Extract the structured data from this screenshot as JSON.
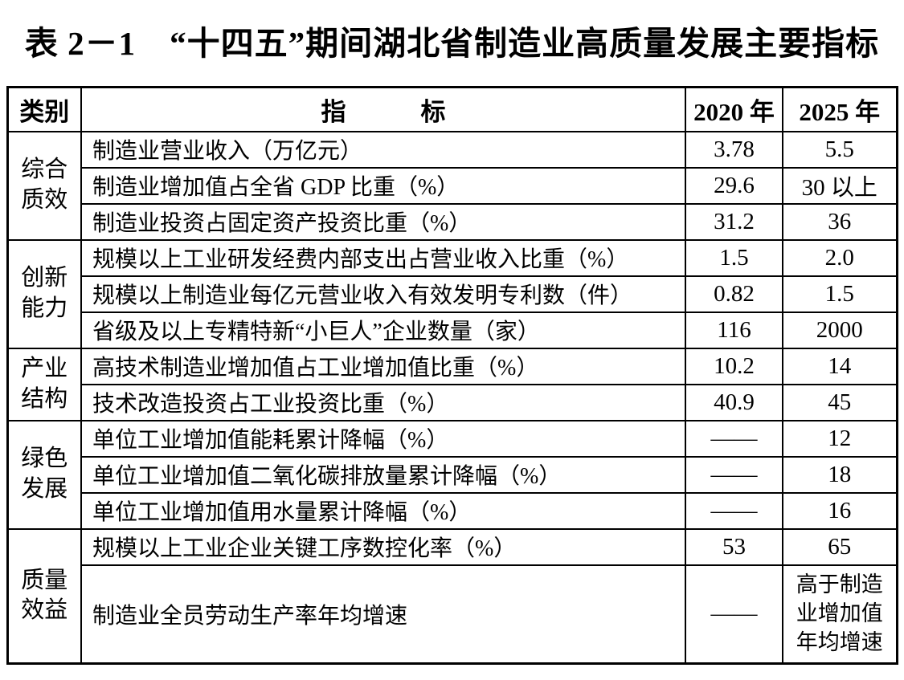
{
  "title": "表 2－1　“十四五”期间湖北省制造业高质量发展主要指标",
  "table": {
    "header": {
      "category": "类别",
      "indicator": "指　　　标",
      "year2020": "2020 年",
      "year2025": "2025 年"
    },
    "groups": [
      {
        "category_lines": [
          "综合",
          "质效"
        ],
        "rows": [
          {
            "indicator": "制造业营业收入（万亿元）",
            "v2020": "3.78",
            "v2025": "5.5"
          },
          {
            "indicator": "制造业增加值占全省 GDP 比重（%）",
            "v2020": "29.6",
            "v2025": "30 以上"
          },
          {
            "indicator": "制造业投资占固定资产投资比重（%）",
            "v2020": "31.2",
            "v2025": "36"
          }
        ]
      },
      {
        "category_lines": [
          "创新",
          "能力"
        ],
        "rows": [
          {
            "indicator": "规模以上工业研发经费内部支出占营业收入比重（%）",
            "v2020": "1.5",
            "v2025": "2.0"
          },
          {
            "indicator": "规模以上制造业每亿元营业收入有效发明专利数（件）",
            "v2020": "0.82",
            "v2025": "1.5"
          },
          {
            "indicator": "省级及以上专精特新“小巨人”企业数量（家）",
            "v2020": "116",
            "v2025": "2000"
          }
        ]
      },
      {
        "category_lines": [
          "产业",
          "结构"
        ],
        "rows": [
          {
            "indicator": "高技术制造业增加值占工业增加值比重（%）",
            "v2020": "10.2",
            "v2025": "14"
          },
          {
            "indicator": "技术改造投资占工业投资比重（%）",
            "v2020": "40.9",
            "v2025": "45"
          }
        ]
      },
      {
        "category_lines": [
          "绿色",
          "发展"
        ],
        "rows": [
          {
            "indicator": "单位工业增加值能耗累计降幅（%）",
            "v2020": "——",
            "v2025": "12"
          },
          {
            "indicator": "单位工业增加值二氧化碳排放量累计降幅（%）",
            "v2020": "——",
            "v2025": "18"
          },
          {
            "indicator": "单位工业增加值用水量累计降幅（%）",
            "v2020": "——",
            "v2025": "16"
          }
        ]
      },
      {
        "category_lines": [
          "质量",
          "效益"
        ],
        "rows": [
          {
            "indicator": "规模以上工业企业关键工序数控化率（%）",
            "v2020": "53",
            "v2025": "65"
          },
          {
            "indicator": "制造业全员劳动生产率年均增速",
            "v2020": "——",
            "v2025": "高于制造业增加值年均增速"
          }
        ]
      }
    ]
  }
}
